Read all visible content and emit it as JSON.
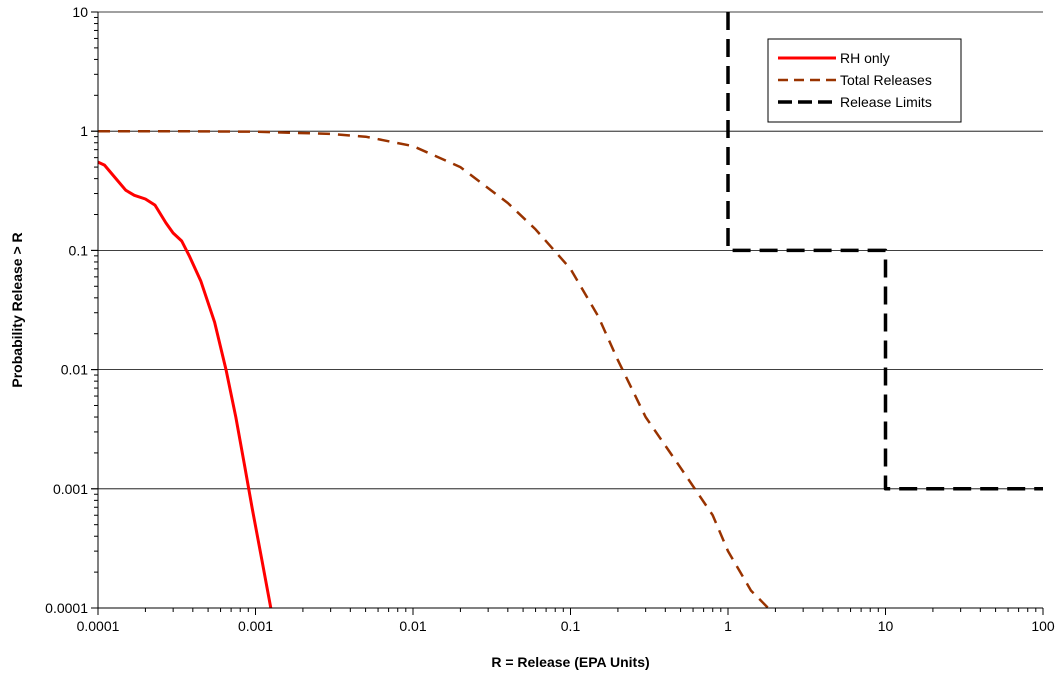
{
  "chart_data": {
    "type": "line",
    "xscale": "log",
    "yscale": "log",
    "xlim": [
      0.0001,
      100
    ],
    "ylim": [
      0.0001,
      10
    ],
    "xlabel": "R = Release (EPA Units)",
    "ylabel": "Probability Release > R",
    "x_ticks": [
      "0.0001",
      "0.001",
      "0.01",
      "0.1",
      "1",
      "10",
      "100"
    ],
    "y_ticks": [
      "10",
      "1",
      "0.1",
      "0.01",
      "0.001",
      "0.0001"
    ],
    "grid": "horizontal major lines",
    "legend_position": "top-right",
    "series": [
      {
        "name": "RH only",
        "color": "#ff0000",
        "dash": "solid",
        "points": [
          [
            0.0001,
            0.55
          ],
          [
            0.00011,
            0.52
          ],
          [
            0.00013,
            0.4
          ],
          [
            0.00015,
            0.32
          ],
          [
            0.00017,
            0.29
          ],
          [
            0.0002,
            0.27
          ],
          [
            0.00023,
            0.24
          ],
          [
            0.00027,
            0.17
          ],
          [
            0.0003,
            0.14
          ],
          [
            0.00034,
            0.12
          ],
          [
            0.00038,
            0.09
          ],
          [
            0.00045,
            0.055
          ],
          [
            0.00055,
            0.025
          ],
          [
            0.00065,
            0.01
          ],
          [
            0.00075,
            0.004
          ],
          [
            0.00085,
            0.0016
          ],
          [
            0.00095,
            0.0007
          ],
          [
            0.0011,
            0.00025
          ],
          [
            0.00125,
            0.0001
          ]
        ]
      },
      {
        "name": "Total Releases",
        "color": "#993300",
        "dash": "dashed",
        "points": [
          [
            0.0001,
            1.0
          ],
          [
            0.0003,
            1.0
          ],
          [
            0.001,
            0.99
          ],
          [
            0.003,
            0.95
          ],
          [
            0.005,
            0.9
          ],
          [
            0.01,
            0.75
          ],
          [
            0.02,
            0.5
          ],
          [
            0.04,
            0.25
          ],
          [
            0.06,
            0.15
          ],
          [
            0.1,
            0.07
          ],
          [
            0.15,
            0.028
          ],
          [
            0.2,
            0.012
          ],
          [
            0.3,
            0.004
          ],
          [
            0.5,
            0.0015
          ],
          [
            0.8,
            0.0006
          ],
          [
            1.0,
            0.0003
          ],
          [
            1.4,
            0.00014
          ],
          [
            1.8,
            0.0001
          ]
        ]
      },
      {
        "name": "Release Limits",
        "color": "#000000",
        "dash": "dashed",
        "points": [
          [
            1,
            10
          ],
          [
            1,
            0.1
          ],
          [
            10,
            0.1
          ],
          [
            10,
            0.001
          ],
          [
            100,
            0.001
          ]
        ]
      }
    ]
  }
}
